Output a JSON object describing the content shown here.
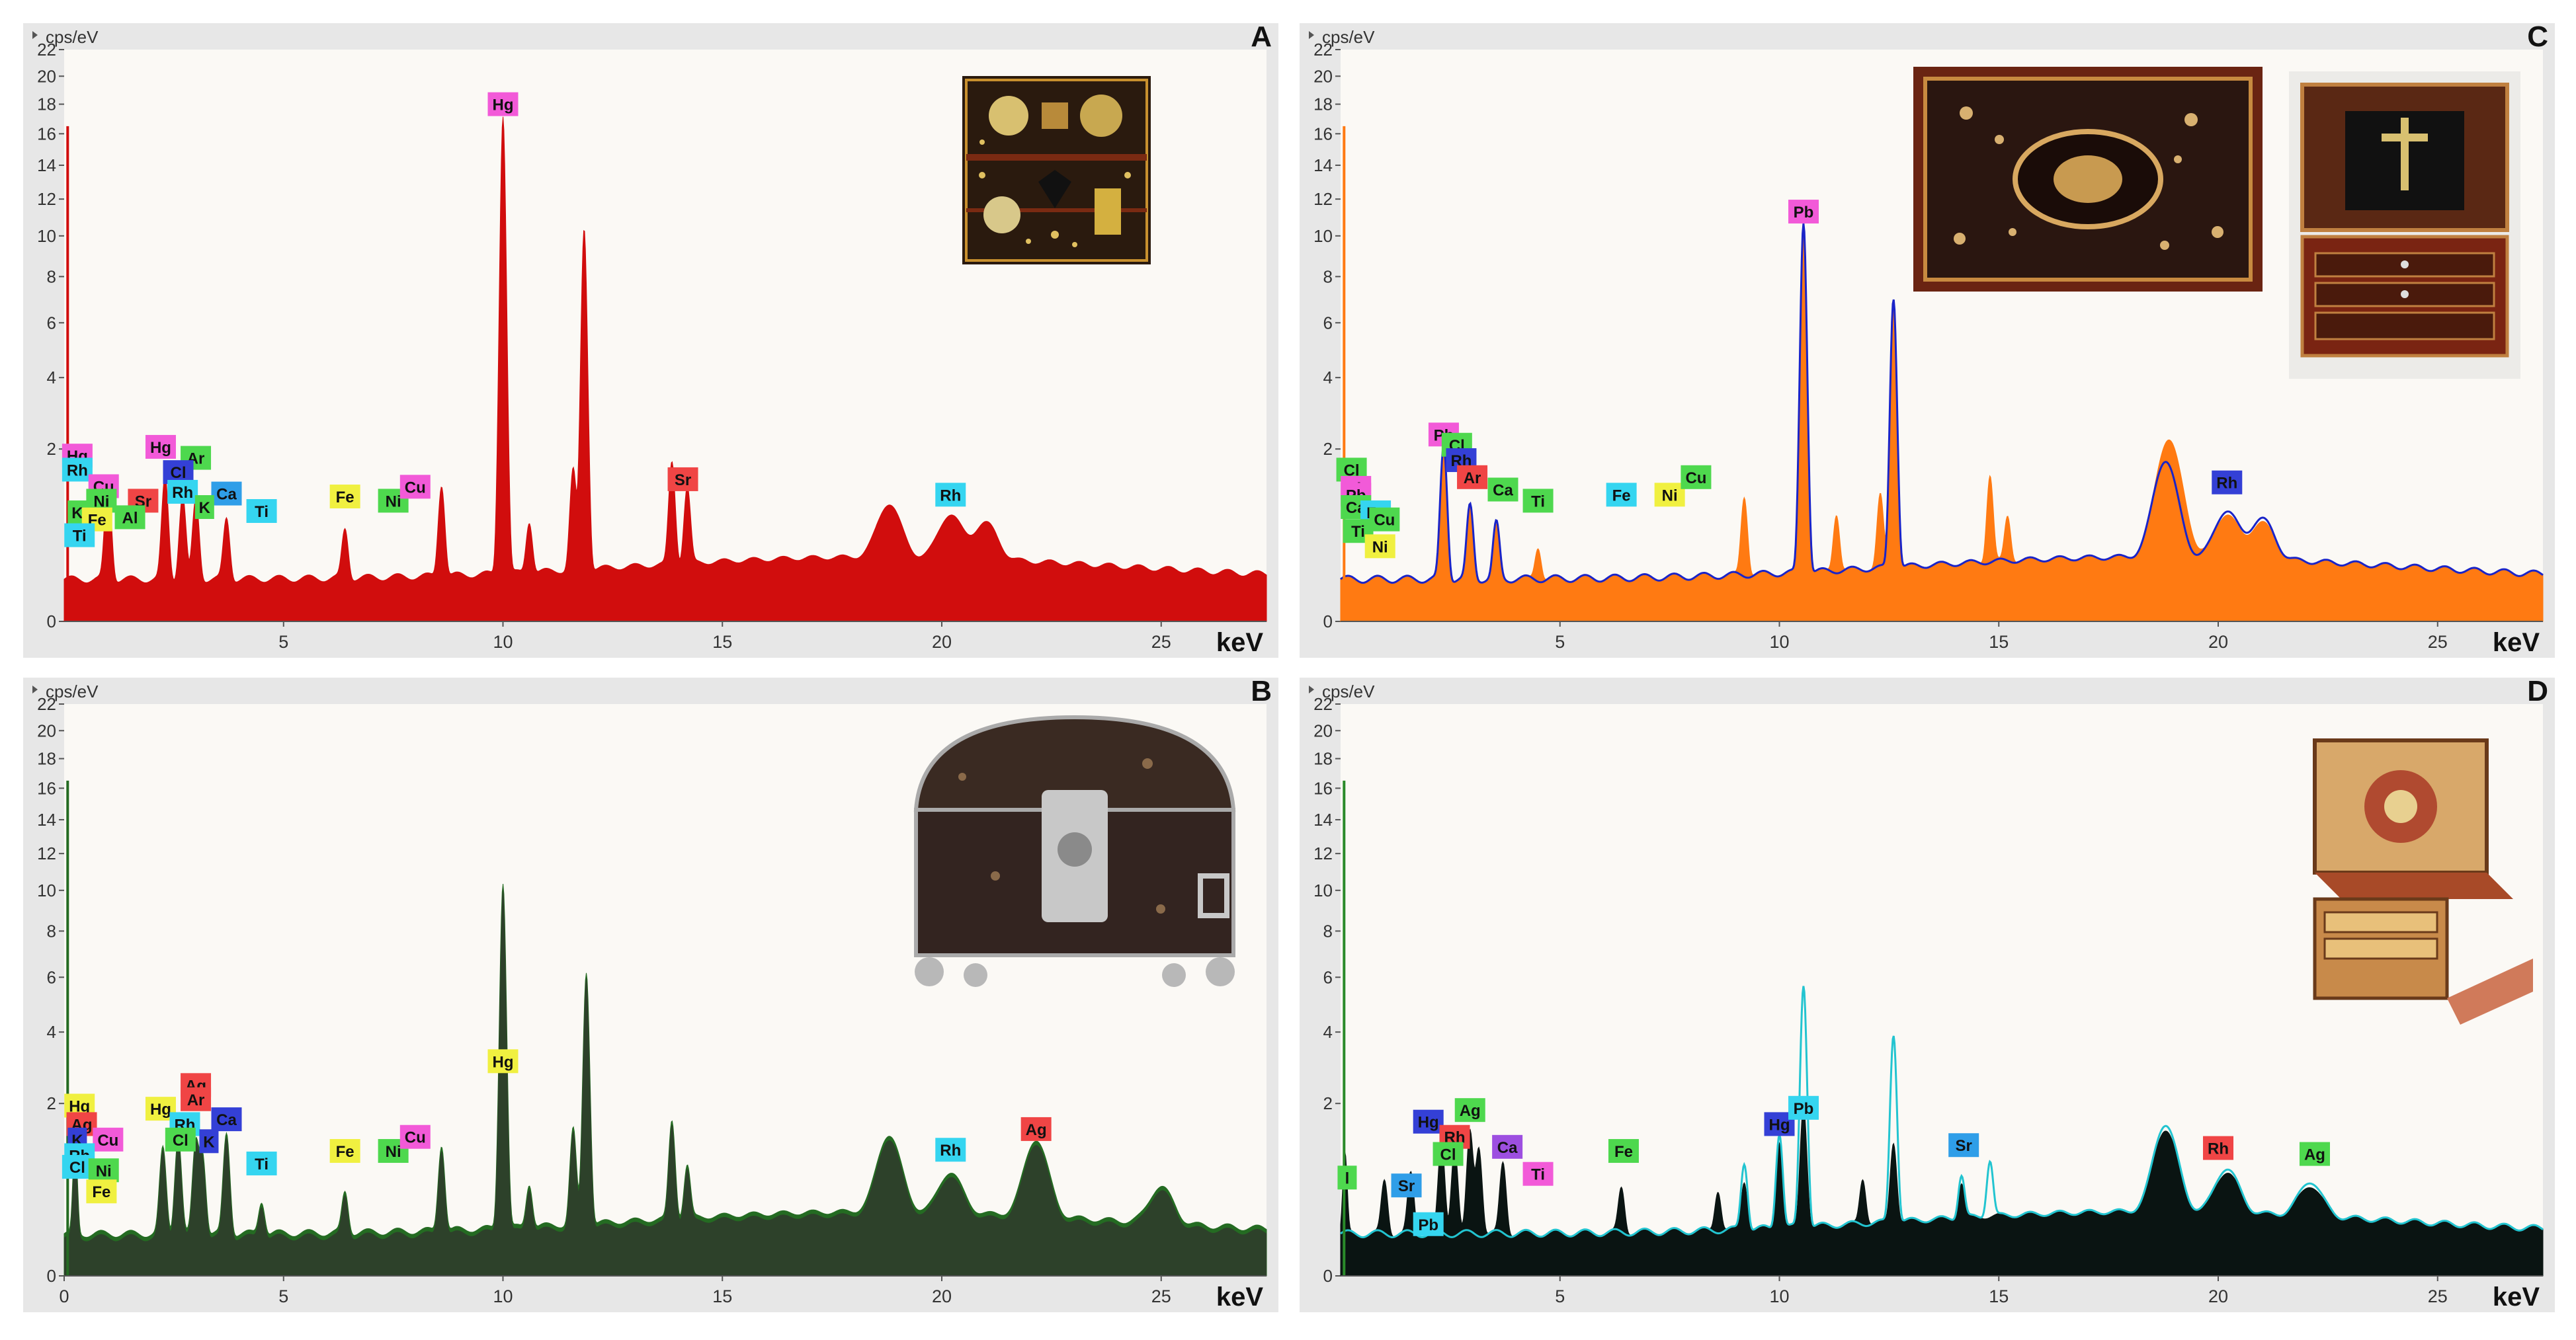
{
  "figure": {
    "panels": [
      {
        "id": "A",
        "color": "#d10d0d",
        "overlay": null
      },
      {
        "id": "C",
        "color": "#ff7a12",
        "overlay": "#1a24c8"
      },
      {
        "id": "B",
        "color": "#246b22",
        "overlay": null
      },
      {
        "id": "D",
        "color": "#0a1412",
        "overlay": "#22c4d0"
      }
    ]
  },
  "chart_data": [
    {
      "panel": "A",
      "type": "area",
      "y_unit": "cps/eV",
      "x_unit": "keV",
      "xlim": [
        0,
        27.4
      ],
      "x_ticks": [
        "5",
        "10",
        "15",
        "20",
        "25"
      ],
      "y_ticks": [
        "0",
        "2",
        "4",
        "6",
        "8",
        "10",
        "12",
        "14",
        "16",
        "18",
        "20",
        "22"
      ],
      "y_scale": "square-root",
      "series": [
        {
          "peaks": [
            [
              1.0,
              1.2
            ],
            [
              2.3,
              1.3
            ],
            [
              2.7,
              0.95
            ],
            [
              3.0,
              0.9
            ],
            [
              3.7,
              0.6
            ],
            [
              6.4,
              0.45
            ],
            [
              8.6,
              1.1
            ],
            [
              10.0,
              17.0
            ],
            [
              10.6,
              0.5
            ],
            [
              11.6,
              1.4
            ],
            [
              11.85,
              10.2
            ],
            [
              13.85,
              1.5
            ],
            [
              14.2,
              1.0
            ],
            [
              18.8,
              0.65
            ],
            [
              20.2,
              0.5
            ],
            [
              21.0,
              0.4
            ]
          ]
        }
      ],
      "labels": [
        {
          "text": "Hg",
          "x": 10.0,
          "y": 18.0,
          "color": "#f25ad8"
        },
        {
          "text": "Hg",
          "x": 0.3,
          "y": 1.85,
          "color": "#f25ad8"
        },
        {
          "text": "Rh",
          "x": 0.3,
          "y": 1.55,
          "color": "#35d5f0"
        },
        {
          "text": "Hg",
          "x": 2.2,
          "y": 2.05,
          "color": "#f25ad8"
        },
        {
          "text": "Ar",
          "x": 3.0,
          "y": 1.8,
          "color": "#4ed84e"
        },
        {
          "text": "Cl",
          "x": 2.6,
          "y": 1.5,
          "color": "#3440d6"
        },
        {
          "text": "Cu",
          "x": 0.9,
          "y": 1.23,
          "color": "#f25ad8"
        },
        {
          "text": "Rh",
          "x": 2.7,
          "y": 1.13,
          "color": "#35d5f0"
        },
        {
          "text": "Ca",
          "x": 3.7,
          "y": 1.1,
          "color": "#2f9ee8"
        },
        {
          "text": "Ni",
          "x": 0.85,
          "y": 0.98,
          "color": "#4ed84e"
        },
        {
          "text": "Sr",
          "x": 1.8,
          "y": 0.98,
          "color": "#f04545"
        },
        {
          "text": "K",
          "x": 3.2,
          "y": 0.88,
          "color": "#4ed84e"
        },
        {
          "text": "K",
          "x": 0.3,
          "y": 0.8,
          "color": "#4ed84e"
        },
        {
          "text": "Al",
          "x": 1.5,
          "y": 0.73,
          "color": "#4ed84e"
        },
        {
          "text": "Fe",
          "x": 0.75,
          "y": 0.7,
          "color": "#f0f040"
        },
        {
          "text": "Ti",
          "x": 4.5,
          "y": 0.82,
          "color": "#35d5f0"
        },
        {
          "text": "Ti",
          "x": 0.35,
          "y": 0.5,
          "color": "#35d5f0"
        },
        {
          "text": "Fe",
          "x": 6.4,
          "y": 1.05,
          "color": "#f0f040"
        },
        {
          "text": "Ni",
          "x": 7.5,
          "y": 0.98,
          "color": "#4ed84e"
        },
        {
          "text": "Cu",
          "x": 8.0,
          "y": 1.22,
          "color": "#f25ad8"
        },
        {
          "text": "Sr",
          "x": 14.1,
          "y": 1.36,
          "color": "#f04545"
        },
        {
          "text": "Rh",
          "x": 20.2,
          "y": 1.08,
          "color": "#35d5f0"
        }
      ]
    },
    {
      "panel": "C",
      "type": "area",
      "y_unit": "cps/eV",
      "x_unit": "keV",
      "xlim": [
        0,
        27.4
      ],
      "x_ticks": [
        "5",
        "10",
        "15",
        "20",
        "25"
      ],
      "y_ticks": [
        "0",
        "2",
        "4",
        "6",
        "8",
        "10",
        "12",
        "14",
        "16",
        "18",
        "20",
        "22"
      ],
      "y_scale": "square-root",
      "series": [
        {
          "peaks": [
            [
              2.35,
              1.9
            ],
            [
              2.95,
              0.75
            ],
            [
              3.55,
              0.5
            ],
            [
              4.5,
              0.25
            ],
            [
              9.2,
              0.9
            ],
            [
              10.55,
              10.5
            ],
            [
              11.3,
              0.6
            ],
            [
              12.3,
              0.9
            ],
            [
              12.6,
              6.8
            ],
            [
              14.8,
              1.2
            ],
            [
              15.2,
              0.5
            ],
            [
              18.8,
              1.3
            ],
            [
              19.0,
              0.8
            ],
            [
              20.2,
              0.5
            ],
            [
              21.0,
              0.4
            ]
          ]
        },
        {
          "peaks": [
            [
              2.35,
              1.95
            ],
            [
              2.95,
              0.8
            ],
            [
              3.55,
              0.55
            ],
            [
              10.55,
              10.5
            ],
            [
              12.6,
              6.8
            ],
            [
              18.8,
              1.45
            ],
            [
              20.2,
              0.55
            ],
            [
              21.0,
              0.45
            ]
          ]
        }
      ],
      "labels": [
        {
          "text": "Pb",
          "x": 10.55,
          "y": 11.3,
          "color": "#f25ad8"
        },
        {
          "text": "Pb",
          "x": 2.35,
          "y": 2.35,
          "color": "#f25ad8"
        },
        {
          "text": "Cl",
          "x": 2.65,
          "y": 2.1,
          "color": "#4ed84e"
        },
        {
          "text": "Rh",
          "x": 2.75,
          "y": 1.75,
          "color": "#3440d6"
        },
        {
          "text": "Ar",
          "x": 3.0,
          "y": 1.4,
          "color": "#f04545"
        },
        {
          "text": "Ca",
          "x": 3.7,
          "y": 1.17,
          "color": "#4ed84e"
        },
        {
          "text": "Ti",
          "x": 4.5,
          "y": 0.98,
          "color": "#4ed84e"
        },
        {
          "text": "Fe",
          "x": 6.4,
          "y": 1.08,
          "color": "#35d5f0"
        },
        {
          "text": "Ni",
          "x": 7.5,
          "y": 1.08,
          "color": "#f0f040"
        },
        {
          "text": "Cu",
          "x": 8.1,
          "y": 1.4,
          "color": "#4ed84e"
        },
        {
          "text": "Rh",
          "x": 20.2,
          "y": 1.3,
          "color": "#3440d6"
        },
        {
          "text": "Cl",
          "x": 0.25,
          "y": 1.55,
          "color": "#4ed84e"
        },
        {
          "text": "Rh",
          "x": 0.35,
          "y": 1.2,
          "color": "#f25ad8"
        },
        {
          "text": "Pb",
          "x": 0.35,
          "y": 1.08,
          "color": "#f25ad8"
        },
        {
          "text": "Ca",
          "x": 0.35,
          "y": 0.88,
          "color": "#4ed84e"
        },
        {
          "text": "Fe",
          "x": 0.8,
          "y": 0.8,
          "color": "#35d5f0"
        },
        {
          "text": "Cu",
          "x": 1.0,
          "y": 0.7,
          "color": "#4ed84e"
        },
        {
          "text": "Ti",
          "x": 0.4,
          "y": 0.55,
          "color": "#4ed84e"
        },
        {
          "text": "Ni",
          "x": 0.9,
          "y": 0.38,
          "color": "#f0f040"
        }
      ]
    },
    {
      "panel": "B",
      "type": "area",
      "y_unit": "cps/eV",
      "x_unit": "keV",
      "xlim": [
        0,
        27.4
      ],
      "x_ticks": [
        "0",
        "5",
        "10",
        "15",
        "20",
        "25"
      ],
      "y_ticks": [
        "0",
        "2",
        "4",
        "6",
        "8",
        "10",
        "12",
        "14",
        "16",
        "18",
        "20",
        "22"
      ],
      "y_scale": "square-root",
      "series": [
        {
          "peaks": [
            [
              0.25,
              1.1
            ],
            [
              2.25,
              1.0
            ],
            [
              2.6,
              1.2
            ],
            [
              3.0,
              1.1
            ],
            [
              3.15,
              0.9
            ],
            [
              3.7,
              1.25
            ],
            [
              4.5,
              0.25
            ],
            [
              6.4,
              0.35
            ],
            [
              8.6,
              1.0
            ],
            [
              10.0,
              10.2
            ],
            [
              10.6,
              0.4
            ],
            [
              11.6,
              1.3
            ],
            [
              11.9,
              6.0
            ],
            [
              13.85,
              1.4
            ],
            [
              14.2,
              0.6
            ],
            [
              18.8,
              1.05
            ],
            [
              20.2,
              0.45
            ],
            [
              22.15,
              1.0
            ],
            [
              25.0,
              0.35
            ]
          ]
        }
      ],
      "labels": [
        {
          "text": "Hg",
          "x": 10.0,
          "y": 3.1,
          "color": "#f0f040"
        },
        {
          "text": "Hg",
          "x": 0.35,
          "y": 1.95,
          "color": "#f0f040"
        },
        {
          "text": "Ag",
          "x": 0.4,
          "y": 1.55,
          "color": "#f04545"
        },
        {
          "text": "K",
          "x": 0.3,
          "y": 1.25,
          "color": "#3440d6"
        },
        {
          "text": "Cu",
          "x": 1.0,
          "y": 1.25,
          "color": "#f25ad8"
        },
        {
          "text": "Rh",
          "x": 0.35,
          "y": 0.98,
          "color": "#35d5f0"
        },
        {
          "text": "Cl",
          "x": 0.3,
          "y": 0.8,
          "color": "#35d5f0"
        },
        {
          "text": "Ni",
          "x": 0.9,
          "y": 0.75,
          "color": "#4ed84e"
        },
        {
          "text": "Fe",
          "x": 0.85,
          "y": 0.48,
          "color": "#f0f040"
        },
        {
          "text": "Ag",
          "x": 3.0,
          "y": 2.45,
          "color": "#f04545"
        },
        {
          "text": "Ar",
          "x": 3.0,
          "y": 2.1,
          "color": "#f04545"
        },
        {
          "text": "Hg",
          "x": 2.2,
          "y": 1.88,
          "color": "#f0f040"
        },
        {
          "text": "Rh",
          "x": 2.75,
          "y": 1.55,
          "color": "#35d5f0"
        },
        {
          "text": "Ca",
          "x": 3.7,
          "y": 1.65,
          "color": "#3440d6"
        },
        {
          "text": "Cl",
          "x": 2.65,
          "y": 1.25,
          "color": "#4ed84e"
        },
        {
          "text": "K",
          "x": 3.3,
          "y": 1.22,
          "color": "#3440d6"
        },
        {
          "text": "Ti",
          "x": 4.5,
          "y": 0.85,
          "color": "#35d5f0"
        },
        {
          "text": "Fe",
          "x": 6.4,
          "y": 1.05,
          "color": "#f0f040"
        },
        {
          "text": "Ni",
          "x": 7.5,
          "y": 1.05,
          "color": "#4ed84e"
        },
        {
          "text": "Cu",
          "x": 8.0,
          "y": 1.3,
          "color": "#f25ad8"
        },
        {
          "text": "Rh",
          "x": 20.2,
          "y": 1.07,
          "color": "#35d5f0"
        },
        {
          "text": "Ag",
          "x": 22.15,
          "y": 1.45,
          "color": "#f04545"
        }
      ]
    },
    {
      "panel": "D",
      "type": "area",
      "y_unit": "cps/eV",
      "x_unit": "keV",
      "xlim": [
        0,
        27.4
      ],
      "x_ticks": [
        "5",
        "10",
        "15",
        "20",
        "25"
      ],
      "y_ticks": [
        "0",
        "2",
        "4",
        "6",
        "8",
        "10",
        "12",
        "14",
        "16",
        "18",
        "20",
        "22"
      ],
      "y_scale": "square-root",
      "series": [
        {
          "peaks": [
            [
              0.1,
              0.9
            ],
            [
              1.0,
              0.5
            ],
            [
              1.6,
              0.6
            ],
            [
              2.3,
              1.1
            ],
            [
              2.6,
              1.0
            ],
            [
              2.95,
              1.3
            ],
            [
              3.15,
              1.0
            ],
            [
              3.7,
              0.75
            ],
            [
              6.4,
              0.4
            ],
            [
              8.6,
              0.35
            ],
            [
              9.2,
              0.45
            ],
            [
              10.0,
              1.05
            ],
            [
              10.55,
              1.8
            ],
            [
              11.9,
              0.45
            ],
            [
              12.6,
              1.0
            ],
            [
              14.15,
              0.35
            ],
            [
              18.8,
              1.15
            ],
            [
              20.2,
              0.45
            ],
            [
              22.1,
              0.3
            ]
          ]
        },
        {
          "peaks": [
            [
              9.2,
              0.7
            ],
            [
              10.0,
              1.2
            ],
            [
              10.55,
              5.5
            ],
            [
              12.6,
              3.7
            ],
            [
              14.15,
              0.45
            ],
            [
              14.8,
              0.65
            ],
            [
              18.8,
              1.25
            ],
            [
              20.2,
              0.5
            ],
            [
              22.1,
              0.35
            ]
          ]
        }
      ],
      "labels": [
        {
          "text": "Hg",
          "x": 2.0,
          "y": 1.6,
          "color": "#3440d6"
        },
        {
          "text": "Ag",
          "x": 2.95,
          "y": 1.85,
          "color": "#4ed84e"
        },
        {
          "text": "Rh",
          "x": 2.6,
          "y": 1.3,
          "color": "#f04545"
        },
        {
          "text": "Cl",
          "x": 2.45,
          "y": 1.0,
          "color": "#4ed84e"
        },
        {
          "text": "Ca",
          "x": 3.8,
          "y": 1.12,
          "color": "#9d4fe0"
        },
        {
          "text": "Ti",
          "x": 4.5,
          "y": 0.7,
          "color": "#f25ad8"
        },
        {
          "text": "Fe",
          "x": 6.45,
          "y": 1.05,
          "color": "#4ed84e"
        },
        {
          "text": "Sr",
          "x": 1.5,
          "y": 0.55,
          "color": "#2f9ee8"
        },
        {
          "text": "Pb",
          "x": 2.0,
          "y": 0.18,
          "color": "#35d5f0"
        },
        {
          "text": "l",
          "x": 0.15,
          "y": 0.65,
          "color": "#4ed84e"
        },
        {
          "text": "Hg",
          "x": 10.0,
          "y": 1.55,
          "color": "#3440d6"
        },
        {
          "text": "Pb",
          "x": 10.55,
          "y": 1.9,
          "color": "#35d5f0"
        },
        {
          "text": "Sr",
          "x": 14.2,
          "y": 1.15,
          "color": "#2f9ee8"
        },
        {
          "text": "Rh",
          "x": 20.0,
          "y": 1.1,
          "color": "#f04545"
        },
        {
          "text": "Ag",
          "x": 22.2,
          "y": 1.0,
          "color": "#4ed84e"
        }
      ]
    }
  ]
}
